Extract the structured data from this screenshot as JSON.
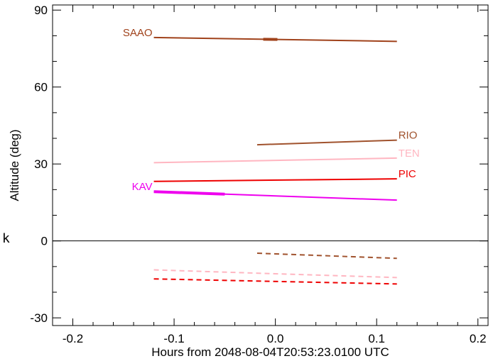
{
  "chart_data": {
    "type": "line",
    "title": "",
    "xlabel": "Hours from 2048-08-04T20:53:23.0100 UTC",
    "ylabel": "Altitude (deg)",
    "xlim": [
      -0.22,
      0.21
    ],
    "ylim": [
      -33,
      92
    ],
    "x_ticks": [
      -0.2,
      -0.1,
      0.0,
      0.1,
      0.2
    ],
    "x_tick_labels": [
      "-0.2",
      "-0.1",
      "0.0",
      "0.1",
      "0.2"
    ],
    "y_ticks": [
      -30,
      0,
      30,
      60,
      90
    ],
    "y_tick_labels": [
      "-30",
      "0",
      "30",
      "60",
      "90"
    ],
    "x_minor_step": 0.02,
    "y_minor_step": 10,
    "zero_line": 0,
    "grid": false,
    "stray_text": "k",
    "series": [
      {
        "name": "SAAO",
        "color": "#a0421b",
        "style": "solid",
        "x": [
          -0.12,
          0.12
        ],
        "y": [
          79.3,
          77.8
        ],
        "label_side": "left",
        "highlight": [
          -0.012,
          0.002
        ]
      },
      {
        "name": "RIO",
        "color": "#a0522d",
        "style": "solid",
        "x": [
          -0.018,
          0.12
        ],
        "y": [
          37.5,
          39.3
        ],
        "label_side": "right"
      },
      {
        "name": "TEN",
        "color": "#ffb6c1",
        "style": "solid",
        "x": [
          -0.12,
          0.12
        ],
        "y": [
          30.5,
          32.3
        ],
        "label_side": "right"
      },
      {
        "name": "PIC",
        "color": "#ee0000",
        "style": "solid",
        "x": [
          -0.12,
          0.12
        ],
        "y": [
          23.2,
          24.2
        ],
        "label_side": "right"
      },
      {
        "name": "KAV",
        "color": "#ee00ee",
        "style": "solid",
        "x": [
          -0.12,
          0.12
        ],
        "y": [
          19.2,
          15.9
        ],
        "label_side": "left",
        "highlight": [
          -0.12,
          -0.05
        ]
      },
      {
        "name": "",
        "color": "#a0522d",
        "style": "dashed",
        "x": [
          -0.018,
          0.12
        ],
        "y": [
          -4.8,
          -6.8
        ]
      },
      {
        "name": "",
        "color": "#ffb6c1",
        "style": "dashed",
        "x": [
          -0.12,
          0.12
        ],
        "y": [
          -11.3,
          -14.3
        ]
      },
      {
        "name": "",
        "color": "#ee0000",
        "style": "dashed",
        "x": [
          -0.12,
          0.12
        ],
        "y": [
          -14.8,
          -16.8
        ]
      }
    ]
  }
}
